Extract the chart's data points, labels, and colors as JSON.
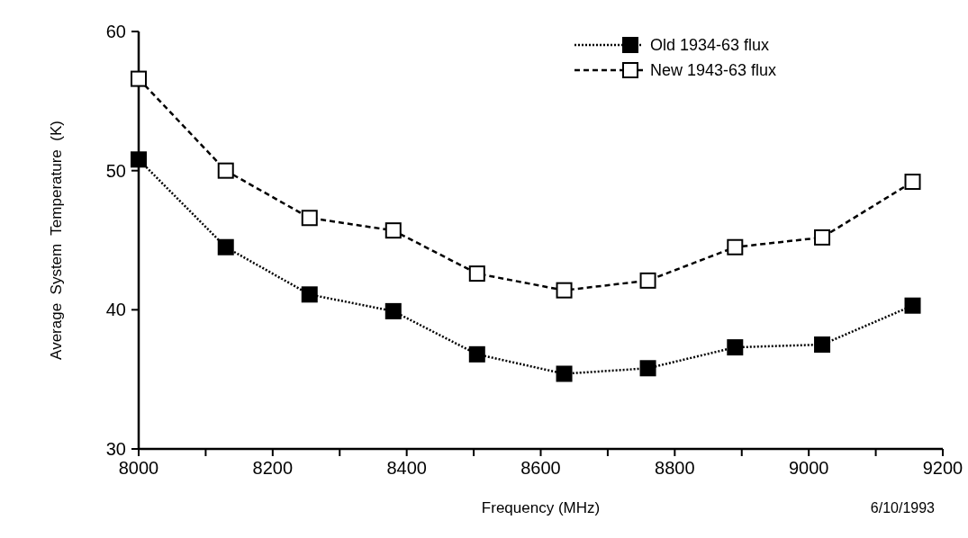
{
  "chart_data": {
    "type": "line",
    "xlabel": "Frequency (MHz)",
    "ylabel": "Average  System  Temperature  (K)",
    "x": [
      8000,
      8130,
      8255,
      8380,
      8505,
      8635,
      8760,
      8890,
      9020,
      9155
    ],
    "series": [
      {
        "name": "Old 1934-63 flux",
        "color": "#000000",
        "line_style": "dotted",
        "values": [
          50.8,
          44.5,
          41.1,
          39.9,
          36.8,
          35.4,
          35.8,
          37.3,
          37.5,
          40.3
        ]
      },
      {
        "name": "New 1943-63 flux",
        "color": "#000000",
        "line_style": "dashed",
        "values": [
          56.6,
          50.0,
          46.6,
          45.7,
          42.6,
          41.4,
          42.1,
          44.5,
          45.2,
          49.2
        ]
      }
    ],
    "xlim": [
      8000,
      9200
    ],
    "xticks": [
      8000,
      {
        "value": 8100,
        "label": null
      },
      8200,
      {
        "value": 8300,
        "label": null
      },
      8400,
      {
        "value": 8500,
        "label": null
      },
      8600,
      {
        "value": 8700,
        "label": null
      },
      8800,
      {
        "value": 8900,
        "label": null
      },
      9000,
      {
        "value": 9100,
        "label": null
      },
      9200
    ],
    "ylim": [
      30,
      60
    ],
    "yticks": [
      30,
      40,
      50,
      60
    ],
    "marker": "square",
    "legend": "top right",
    "grid": false,
    "annotations": [
      "6/10/1993"
    ]
  }
}
